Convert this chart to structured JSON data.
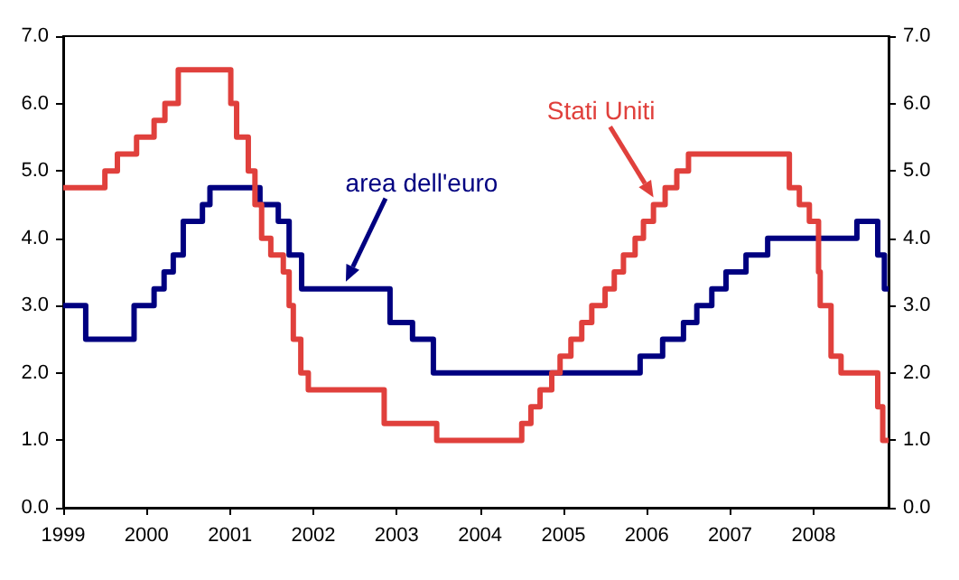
{
  "chart_data": {
    "type": "step",
    "xlim": [
      1999,
      2008.9
    ],
    "xticks": [
      1999,
      2000,
      2001,
      2002,
      2003,
      2004,
      2005,
      2006,
      2007,
      2008
    ],
    "ylim": [
      0,
      7
    ],
    "yticks": [
      {
        "value": 0,
        "label": "0.0"
      },
      {
        "value": 1,
        "label": "1.0"
      },
      {
        "value": 2,
        "label": "2.0"
      },
      {
        "value": 3,
        "label": "3.0"
      },
      {
        "value": 4,
        "label": "4.0"
      },
      {
        "value": 5,
        "label": "5.0"
      },
      {
        "value": 6,
        "label": "6.0"
      },
      {
        "value": 7,
        "label": "7.0"
      }
    ],
    "y2lim": [
      0,
      7
    ],
    "y2ticks": [
      {
        "value": 0,
        "label": "0.0"
      },
      {
        "value": 1,
        "label": "1.0"
      },
      {
        "value": 2,
        "label": "2.0"
      },
      {
        "value": 3,
        "label": "3.0"
      },
      {
        "value": 4,
        "label": "4.0"
      },
      {
        "value": 5,
        "label": "5.0"
      },
      {
        "value": 6,
        "label": "6.0"
      },
      {
        "value": 7,
        "label": "7.0"
      }
    ],
    "grid": false,
    "legend": false,
    "line_style": "solid",
    "marker": "none",
    "series": [
      {
        "name": "area dell'euro",
        "color": "#000080",
        "x": [
          1999.0,
          1999.27,
          1999.85,
          2000.09,
          2000.21,
          2000.32,
          2000.44,
          2000.67,
          2000.76,
          2001.36,
          2001.58,
          2001.71,
          2001.86,
          2002.92,
          2003.19,
          2003.44,
          2005.92,
          2006.19,
          2006.44,
          2006.6,
          2006.78,
          2006.95,
          2007.19,
          2007.45,
          2008.52,
          2008.77,
          2008.85,
          2008.9
        ],
        "values": [
          3.0,
          2.5,
          3.0,
          3.25,
          3.5,
          3.75,
          4.25,
          4.5,
          4.75,
          4.5,
          4.25,
          3.75,
          3.25,
          2.75,
          2.5,
          2.0,
          2.25,
          2.5,
          2.75,
          3.0,
          3.25,
          3.5,
          3.75,
          4.0,
          4.25,
          3.75,
          3.25,
          3.25
        ]
      },
      {
        "name": "Stati Uniti",
        "color": "#e0403c",
        "x": [
          1999.0,
          1999.5,
          1999.65,
          1999.88,
          2000.09,
          2000.22,
          2000.38,
          2001.01,
          2001.08,
          2001.22,
          2001.3,
          2001.38,
          2001.49,
          2001.64,
          2001.71,
          2001.76,
          2001.85,
          2001.94,
          2002.85,
          2003.48,
          2004.5,
          2004.61,
          2004.72,
          2004.86,
          2004.96,
          2005.09,
          2005.22,
          2005.34,
          2005.5,
          2005.61,
          2005.72,
          2005.86,
          2005.96,
          2006.08,
          2006.22,
          2006.36,
          2006.5,
          2007.71,
          2007.83,
          2007.95,
          2008.06,
          2008.08,
          2008.21,
          2008.33,
          2008.77,
          2008.83,
          2008.9
        ],
        "values": [
          4.75,
          5.0,
          5.25,
          5.5,
          5.75,
          6.0,
          6.5,
          6.0,
          5.5,
          5.0,
          4.5,
          4.0,
          3.75,
          3.5,
          3.0,
          2.5,
          2.0,
          1.75,
          1.25,
          1.0,
          1.25,
          1.5,
          1.75,
          2.0,
          2.25,
          2.5,
          2.75,
          3.0,
          3.25,
          3.5,
          3.75,
          4.0,
          4.25,
          4.5,
          4.75,
          5.0,
          5.25,
          4.75,
          4.5,
          4.25,
          3.5,
          3.0,
          2.25,
          2.0,
          1.5,
          1.0,
          1.0
        ]
      }
    ]
  }
}
